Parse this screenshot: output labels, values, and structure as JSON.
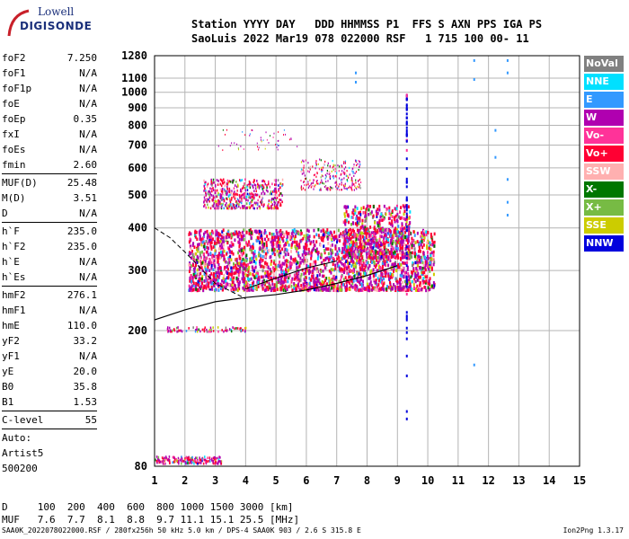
{
  "logo": {
    "line1": "Lowell",
    "line2": "DIGISONDE"
  },
  "header": {
    "line1": "Station YYYY DAY   DDD HHMMSS P1  FFS S AXN PPS IGA PS",
    "line2": "SaoLuis 2022 Mar19 078 022000 RSF   1 715 100 00- 11"
  },
  "params": [
    {
      "k": "foF2",
      "v": "7.250"
    },
    {
      "k": "foF1",
      "v": "N/A"
    },
    {
      "k": "foF1p",
      "v": "N/A"
    },
    {
      "k": "foE",
      "v": "N/A"
    },
    {
      "k": "foEp",
      "v": "0.35"
    },
    {
      "k": "fxI",
      "v": "N/A"
    },
    {
      "k": "foEs",
      "v": "N/A"
    },
    {
      "k": "fmin",
      "v": "2.60",
      "sep": true
    },
    {
      "k": "MUF(D)",
      "v": "25.48"
    },
    {
      "k": "M(D)",
      "v": "3.51"
    },
    {
      "k": "D",
      "v": "N/A",
      "sep": true
    },
    {
      "k": "h`F",
      "v": "235.0"
    },
    {
      "k": "h`F2",
      "v": "235.0"
    },
    {
      "k": "h`E",
      "v": "N/A"
    },
    {
      "k": "h`Es",
      "v": "N/A",
      "sep": true
    },
    {
      "k": "hmF2",
      "v": "276.1"
    },
    {
      "k": "hmF1",
      "v": "N/A"
    },
    {
      "k": "hmE",
      "v": "110.0"
    },
    {
      "k": "yF2",
      "v": "33.2"
    },
    {
      "k": "yF1",
      "v": "N/A"
    },
    {
      "k": "yE",
      "v": "20.0"
    },
    {
      "k": "B0",
      "v": "35.8"
    },
    {
      "k": "B1",
      "v": "1.53",
      "sep": true
    },
    {
      "k": "C-level",
      "v": "55",
      "sep": true
    }
  ],
  "extra": [
    "Auto:",
    "Artist5",
    "500200"
  ],
  "legend": [
    {
      "label": "NoVal",
      "color": "#808080"
    },
    {
      "label": "NNE",
      "color": "#00e0ff"
    },
    {
      "label": "E",
      "color": "#3399ff"
    },
    {
      "label": "W",
      "color": "#b000b0"
    },
    {
      "label": "Vo-",
      "color": "#ff3399"
    },
    {
      "label": "Vo+",
      "color": "#ff0033"
    },
    {
      "label": "SSW",
      "color": "#ffb0b0"
    },
    {
      "label": "X-",
      "color": "#007700"
    },
    {
      "label": "X+",
      "color": "#77bb44"
    },
    {
      "label": "SSE",
      "color": "#cccc00"
    },
    {
      "label": "NNW",
      "color": "#0000dd"
    }
  ],
  "chart_data": {
    "type": "scatter",
    "xlim": [
      1,
      15
    ],
    "ylim": [
      80,
      1280
    ],
    "x_ticks": [
      1,
      2,
      3,
      4,
      5,
      6,
      7,
      8,
      9,
      10,
      11,
      12,
      13,
      14,
      15
    ],
    "y_ticks": [
      80,
      200,
      300,
      400,
      500,
      600,
      700,
      800,
      900,
      1000,
      1100,
      1280
    ],
    "y_scale": "log",
    "grid": true
  },
  "bottom": {
    "line1": "D     100  200  400  600  800 1000 1500 3000 [km]",
    "line2": "MUF   7.6  7.7  8.1  8.8  9.7 11.1 15.1 25.5 [MHz]"
  },
  "footer": "SAA0K_2022078022000.RSF / 280fx256h 50 kHz 5.0 km / DPS-4 SAA0K 903 / 2.6 S 315.8 E",
  "version": "Ion2Png 1.3.17"
}
